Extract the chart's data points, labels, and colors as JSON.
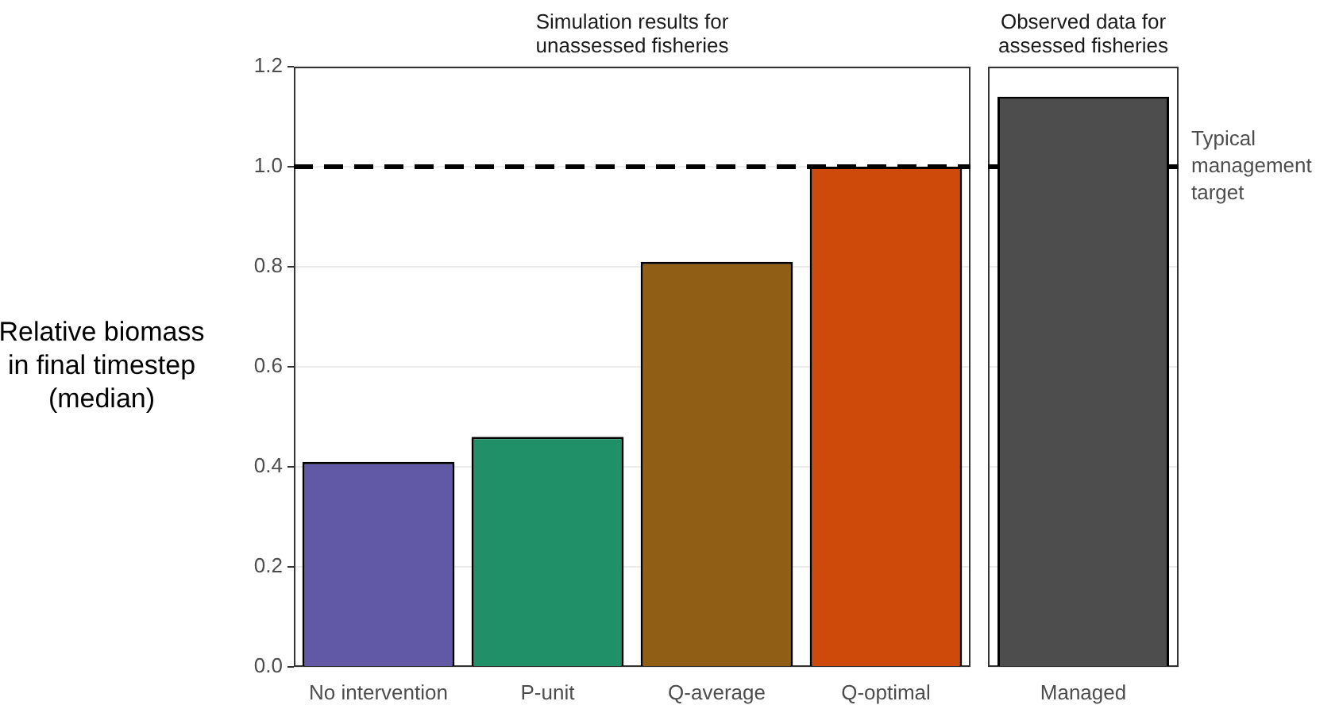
{
  "chart_data": [
    {
      "type": "bar",
      "title": "Simulation results for\nunassessed fisheries",
      "ylabel": "Relative biomass\nin final timestep\n(median)",
      "categories": [
        "No intervention",
        "P-unit",
        "Q-average",
        "Q-optimal"
      ],
      "values": [
        0.41,
        0.46,
        0.81,
        1.0
      ],
      "colors": [
        "#6159a6",
        "#1f9068",
        "#915e16",
        "#ce4a0a"
      ],
      "ylim": [
        0,
        1.2
      ],
      "yticks": [
        {
          "value": 0,
          "label": "0.0"
        },
        {
          "value": 0.2,
          "label": "0.2"
        },
        {
          "value": 0.4,
          "label": "0.4"
        },
        {
          "value": 0.6,
          "label": "0.6"
        },
        {
          "value": 0.8,
          "label": "0.8"
        },
        {
          "value": 1,
          "label": "1.0"
        },
        {
          "value": 1.2,
          "label": "1.2"
        }
      ],
      "grid": "y",
      "legend": false,
      "ref_lines": [
        {
          "axis": "y",
          "value": 1.0,
          "color": "#000000",
          "line_style": "dashed"
        }
      ]
    },
    {
      "type": "bar",
      "title": "Observed data for\nassessed fisheries",
      "categories": [
        "Managed"
      ],
      "values": [
        1.14
      ],
      "colors": [
        "#4d4d4d"
      ],
      "ylim": [
        0,
        1.2
      ],
      "yticks": [
        {
          "value": 0,
          "label": null
        },
        {
          "value": 0.2,
          "label": null
        },
        {
          "value": 0.4,
          "label": null
        },
        {
          "value": 0.6,
          "label": null
        },
        {
          "value": 0.8,
          "label": null
        },
        {
          "value": 1,
          "label": null
        },
        {
          "value": 1.2,
          "label": null
        }
      ],
      "grid": "y",
      "legend": false,
      "tick_labels": "x",
      "ref_lines": [
        {
          "axis": "y",
          "value": 1.0,
          "label": "Typical\nmanagement\ntarget",
          "color": "#000000",
          "line_style": "dashed"
        }
      ]
    }
  ]
}
